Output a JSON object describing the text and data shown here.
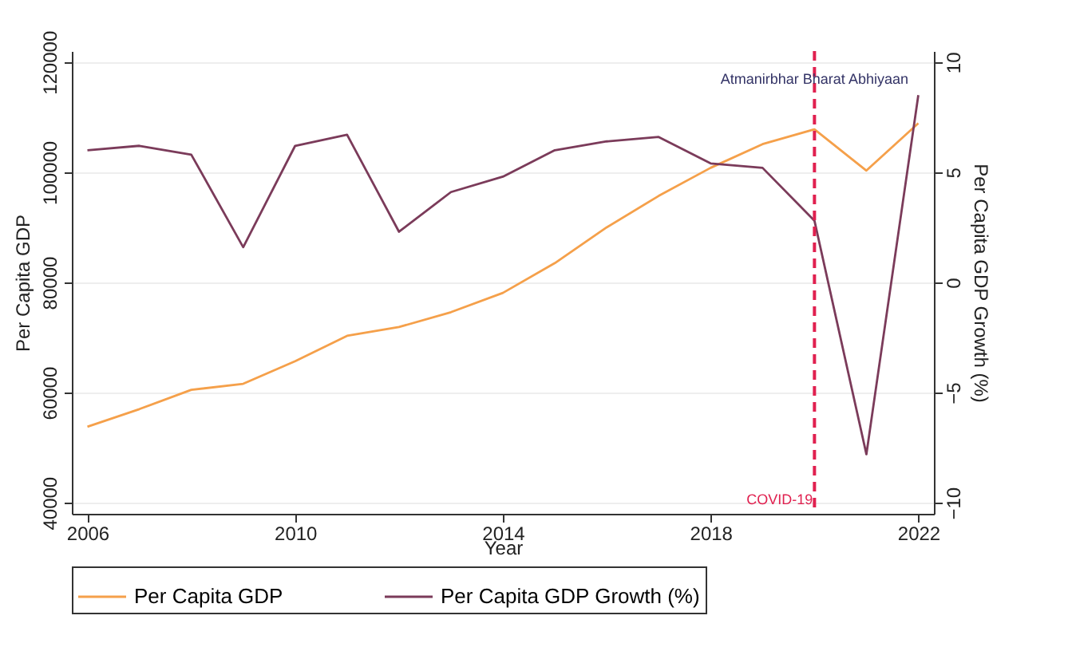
{
  "chart_data": {
    "type": "line",
    "xlabel": "Year",
    "ylabel": "Per Capita GDP",
    "y2label": "Per Capita GDP Growth (%)",
    "x": [
      2006,
      2007,
      2008,
      2009,
      2010,
      2011,
      2012,
      2013,
      2014,
      2015,
      2016,
      2017,
      2018,
      2019,
      2020,
      2021,
      2022
    ],
    "series": [
      {
        "name": "Per Capita GDP",
        "color": "#f5a04a",
        "values": [
          53800,
          57000,
          60500,
          61600,
          65700,
          70300,
          71900,
          74600,
          78100,
          83500,
          90000,
          95700,
          100800,
          105100,
          107800,
          100300,
          108900
        ]
      },
      {
        "name": "Per Capita GDP Growth (%)",
        "color": "#7b3b5a",
        "axis": "y2",
        "values": [
          6.0,
          6.2,
          5.8,
          1.6,
          6.2,
          6.7,
          2.3,
          4.1,
          4.8,
          6.0,
          6.4,
          6.6,
          5.4,
          5.2,
          2.8,
          -7.8,
          8.5
        ]
      }
    ],
    "xlim": [
      2005.7,
      2022.3
    ],
    "xticks": [
      2006,
      2010,
      2014,
      2018,
      2022
    ],
    "ylim": [
      38000,
      122000
    ],
    "yticks": [
      40000,
      60000,
      80000,
      100000,
      120000
    ],
    "y2lim": [
      -10.5,
      10.5
    ],
    "y2ticks": [
      -10,
      -5,
      0,
      5,
      10
    ],
    "ref_lines": [
      {
        "axis": "x",
        "value": 2020,
        "label": "COVID-19",
        "color": "#e0204f",
        "line_style": "dashed"
      }
    ],
    "annotations": [
      {
        "text": "Atmanirbhar Bharat Abhiyaan",
        "x": 2020,
        "y": 117000
      }
    ],
    "grid": "y",
    "legend": "bottom",
    "marker": "none",
    "line_style": "solid"
  }
}
